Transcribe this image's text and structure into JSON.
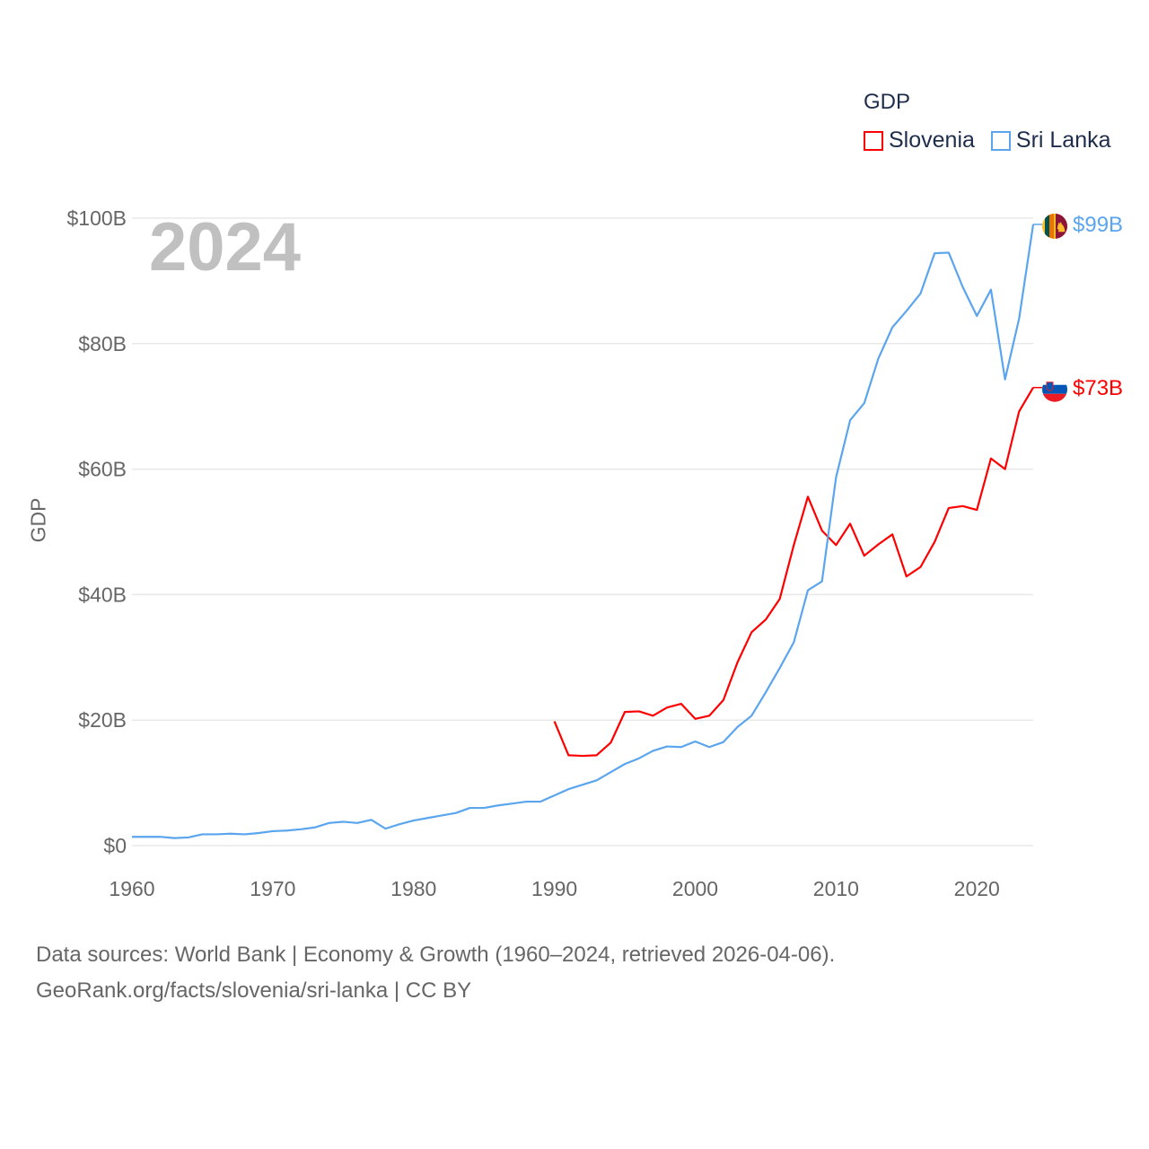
{
  "chart_data": {
    "type": "line",
    "title": "GDP",
    "ylabel": "GDP",
    "xlabel": "",
    "year_display": "2024",
    "xlim": [
      1960,
      2024
    ],
    "ylim": [
      0,
      100
    ],
    "x_ticks": [
      "1960",
      "1970",
      "1980",
      "1990",
      "2000",
      "2010",
      "2020"
    ],
    "y_ticks": [
      {
        "v": 0,
        "label": "$0"
      },
      {
        "v": 20,
        "label": "$20B"
      },
      {
        "v": 40,
        "label": "$40B"
      },
      {
        "v": 60,
        "label": "$60B"
      },
      {
        "v": 80,
        "label": "$80B"
      },
      {
        "v": 100,
        "label": "$100B"
      }
    ],
    "grid": true,
    "legend_placement": "top-right",
    "series": [
      {
        "name": "Slovenia",
        "color": "#ff0000",
        "end_label": "$73B",
        "flag": "slovenia",
        "start": 1990,
        "values": [
          19.8,
          14.4,
          14.3,
          14.4,
          16.4,
          21.3,
          21.4,
          20.7,
          22.0,
          22.6,
          20.2,
          20.7,
          23.2,
          29.2,
          34.0,
          36.0,
          39.3,
          47.9,
          55.6,
          50.2,
          47.9,
          51.3,
          46.2,
          48.0,
          49.6,
          42.9,
          44.4,
          48.4,
          53.8,
          54.1,
          53.5,
          61.7,
          60.0,
          69.2,
          73.0
        ]
      },
      {
        "name": "Sri Lanka",
        "color": "#5aa5ee",
        "end_label": "$99B",
        "flag": "sri-lanka",
        "start": 1960,
        "values": [
          1.4,
          1.4,
          1.4,
          1.2,
          1.3,
          1.8,
          1.8,
          1.9,
          1.8,
          2.0,
          2.3,
          2.4,
          2.6,
          2.9,
          3.6,
          3.8,
          3.6,
          4.1,
          2.7,
          3.4,
          4.0,
          4.4,
          4.8,
          5.2,
          6.0,
          6.0,
          6.4,
          6.7,
          7.0,
          7.0,
          8.0,
          9.0,
          9.7,
          10.4,
          11.7,
          13.0,
          13.9,
          15.1,
          15.8,
          15.7,
          16.6,
          15.7,
          16.5,
          18.9,
          20.7,
          24.4,
          28.3,
          32.4,
          40.7,
          42.1,
          58.7,
          67.8,
          70.5,
          77.6,
          82.6,
          85.2,
          88.0,
          94.4,
          94.5,
          89.0,
          84.4,
          88.6,
          74.3,
          84.0,
          99.0
        ]
      }
    ]
  },
  "footer": {
    "line1": "Data sources: World Bank | Economy & Growth (1960–2024, retrieved 2026-04-06).",
    "line2": "GeoRank.org/facts/slovenia/sri-lanka | CC BY"
  }
}
